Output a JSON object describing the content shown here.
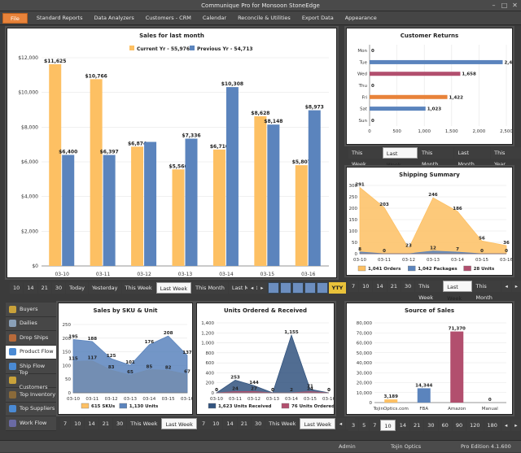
{
  "app_title": "Communique Pro for Monsoon StoneEdge",
  "menu": [
    "File",
    "Standard Reports",
    "Data Analyzers",
    "Customers - CRM",
    "Calendar",
    "Reconcile & Utilities",
    "Export Data",
    "Appearance"
  ],
  "sales_chart": {
    "title": "Sales for last month",
    "tabs": [
      "10",
      "14",
      "21",
      "30",
      "Today",
      "Yesterday",
      "This Week",
      "Last Week",
      "This Month",
      "Last Month"
    ],
    "selected_tab": "Last Week",
    "yty_label": "YTY"
  },
  "customer_returns": {
    "title": "Customer Returns",
    "tabs": [
      "This Week",
      "Last Week",
      "This Month",
      "Last Month",
      "This Year"
    ],
    "selected_tab": "Last Week"
  },
  "shipping_summary": {
    "title": "Shipping Summary",
    "tabs": [
      "7",
      "10",
      "14",
      "21",
      "30",
      "This Week",
      "Last Week",
      "This Month"
    ],
    "selected_tab": "Last Week"
  },
  "sales_by_sku": {
    "title": "Sales by SKU & Unit",
    "tabs": [
      "7",
      "10",
      "14",
      "21",
      "30",
      "This Week",
      "Last Week"
    ],
    "selected_tab": "Last Week"
  },
  "units_ordered": {
    "title": "Units Ordered & Received",
    "tabs": [
      "7",
      "10",
      "14",
      "21",
      "30",
      "This Week",
      "Last Week"
    ],
    "selected_tab": "Last Week"
  },
  "source_of_sales": {
    "title": "Source of Sales",
    "tabs": [
      "3",
      "5",
      "7",
      "10",
      "14",
      "21",
      "30",
      "60",
      "90",
      "120",
      "180"
    ],
    "selected_tab": "10"
  },
  "sidebar": {
    "items": [
      {
        "label": "Buyers",
        "icon": "buyers-icon",
        "color": "#c9a23a"
      },
      {
        "label": "Dailies",
        "icon": "dailies-icon",
        "color": "#8aa0b8"
      },
      {
        "label": "Drop Ships",
        "icon": "drop-ships-icon",
        "color": "#b86a3a"
      },
      {
        "label": "Product Flow",
        "icon": "product-flow-icon",
        "color": "#4a8ad4"
      },
      {
        "label": "Ship Flow",
        "icon": "ship-flow-icon",
        "color": "#4a8ad4"
      },
      {
        "label": "Top Customers",
        "icon": "top-customers-icon",
        "color": "#c9a23a"
      },
      {
        "label": "Top Inventory",
        "icon": "top-inventory-icon",
        "color": "#8a6a3a"
      },
      {
        "label": "Top Suppliers",
        "icon": "top-suppliers-icon",
        "color": "#4a8ad4"
      },
      {
        "label": "Work Flow",
        "icon": "work-flow-icon",
        "color": "#6a6aa4"
      }
    ],
    "selected": "Product Flow"
  },
  "status": {
    "user": "Admin",
    "company": "Tojin Optics",
    "edition": "Pro Edition 4.1.600"
  },
  "colors": {
    "orange": "#fdc063",
    "blue": "#5b84bd",
    "red": "#b24f6e",
    "dark": "#33547f",
    "accent": "#e8833a"
  },
  "chart_data": [
    {
      "type": "bar",
      "title": "Sales for last month",
      "categories": [
        "03-10",
        "03-11",
        "03-12",
        "03-13",
        "03-14",
        "03-15",
        "03-16"
      ],
      "series": [
        {
          "name": "Current Yr - 55,976",
          "values": [
            11625,
            10766,
            6874,
            5566,
            6710,
            8628,
            5807
          ],
          "color": "#fdc063"
        },
        {
          "name": "Previous Yr - 54,713",
          "values": [
            6400,
            6397,
            7150,
            7336,
            10308,
            8148,
            8973
          ],
          "color": "#5b84bd"
        }
      ],
      "labels": [
        [
          "$11,625",
          "$10,766",
          "$6,874",
          "$5,566",
          "$6,710",
          "$8,628",
          "$5,807"
        ],
        [
          "$6,400",
          "$6,397",
          "",
          "$7,336",
          "$10,308",
          "$8,148",
          "$8,973"
        ]
      ],
      "ylim": [
        0,
        12000
      ],
      "yticks": [
        "$0",
        "$2,000",
        "$4,000",
        "$6,000",
        "$8,000",
        "$10,000",
        "$12,000"
      ]
    },
    {
      "type": "bar",
      "title": "Customer Returns",
      "categories": [
        "Mon",
        "Tue",
        "Wed",
        "Thu",
        "Fri",
        "Sat",
        "Sun"
      ],
      "values": [
        0,
        2433,
        1658,
        0,
        1422,
        1023,
        0
      ],
      "value_labels": [
        "0",
        "2,433",
        "1,658",
        "0",
        "1,422",
        "1,023",
        "0"
      ],
      "bar_colors": [
        "#5b84bd",
        "#5b84bd",
        "#b24f6e",
        "#5b84bd",
        "#e8833a",
        "#5b84bd",
        "#5b84bd"
      ],
      "xlim": [
        0,
        2500
      ],
      "xticks": [
        "0",
        "500",
        "1,000",
        "1,500",
        "2,000",
        "2,500"
      ]
    },
    {
      "type": "area",
      "title": "Shipping Summary",
      "x": [
        "03-10",
        "03-11",
        "03-12",
        "03-13",
        "03-14",
        "03-15",
        "03-16"
      ],
      "series": [
        {
          "name": "1,041 Orders",
          "values": [
            291,
            203,
            23,
            246,
            186,
            56,
            36
          ],
          "color": "#fdc063"
        },
        {
          "name": "1,042 Packages",
          "values": [
            8,
            0,
            0,
            12,
            7,
            0,
            0
          ],
          "color": "#5b84bd"
        },
        {
          "name": "28 Units",
          "values": [
            0,
            0,
            0,
            0,
            0,
            0,
            0
          ],
          "color": "#b24f6e"
        }
      ],
      "point_labels": [
        [
          "291",
          "203",
          "23",
          "246",
          "186",
          "56",
          "36"
        ],
        [
          "8",
          "0",
          "",
          "12",
          "7",
          "0",
          "0"
        ]
      ],
      "ylim": [
        0,
        300
      ],
      "yticks": [
        "0",
        "50",
        "100",
        "150",
        "200",
        "250",
        "300"
      ]
    },
    {
      "type": "area",
      "title": "Sales by SKU & Unit",
      "x": [
        "03-10",
        "03-11",
        "03-12",
        "03-13",
        "03-14",
        "03-15",
        "03-16"
      ],
      "series": [
        {
          "name": "615 SKUs",
          "values": [
            115,
            117,
            83,
            65,
            85,
            82,
            67
          ],
          "color": "#fdc063"
        },
        {
          "name": "1,130 Units",
          "values": [
            195,
            188,
            125,
            101,
            176,
            208,
            137
          ],
          "color": "#5b84bd"
        }
      ],
      "point_labels": [
        [
          "115",
          "117",
          "83",
          "65",
          "85",
          "82",
          "67"
        ],
        [
          "195",
          "188",
          "125",
          "101",
          "176",
          "208",
          "137"
        ]
      ],
      "ylim": [
        0,
        250
      ],
      "yticks": [
        "0",
        "50",
        "100",
        "150",
        "200",
        "250"
      ]
    },
    {
      "type": "area",
      "title": "Units Ordered & Received",
      "x": [
        "03-10",
        "03-11",
        "03-12",
        "03-13",
        "03-14",
        "03-15",
        "03-16"
      ],
      "series": [
        {
          "name": "1,623 Units Received",
          "values": [
            0,
            253,
            144,
            0,
            1155,
            71,
            0
          ],
          "color": "#33547f"
        },
        {
          "name": "76 Units Ordered",
          "values": [
            0,
            24,
            27,
            0,
            2,
            24,
            0
          ],
          "color": "#b24f6e"
        }
      ],
      "point_labels": [
        [
          "0",
          "253",
          "144",
          "0",
          "1,155",
          "71",
          "0"
        ],
        [
          "0",
          "24",
          "27",
          "0",
          "2",
          "24",
          "0"
        ]
      ],
      "ylim": [
        0,
        1400
      ],
      "yticks": [
        "0",
        "200",
        "400",
        "600",
        "800",
        "1,000",
        "1,200",
        "1,400"
      ]
    },
    {
      "type": "bar",
      "title": "Source of Sales",
      "categories": [
        "TojinOptics.com",
        "FBA",
        "Amazon",
        "Manual"
      ],
      "values": [
        3189,
        14344,
        71370,
        0
      ],
      "value_labels": [
        "3,189",
        "14,344",
        "71,370",
        "0"
      ],
      "bar_colors": [
        "#fdc063",
        "#5b84bd",
        "#b24f6e",
        "#5b84bd"
      ],
      "ylim": [
        0,
        80000
      ],
      "yticks": [
        "0",
        "10,000",
        "20,000",
        "30,000",
        "40,000",
        "50,000",
        "60,000",
        "70,000",
        "80,000"
      ]
    }
  ]
}
